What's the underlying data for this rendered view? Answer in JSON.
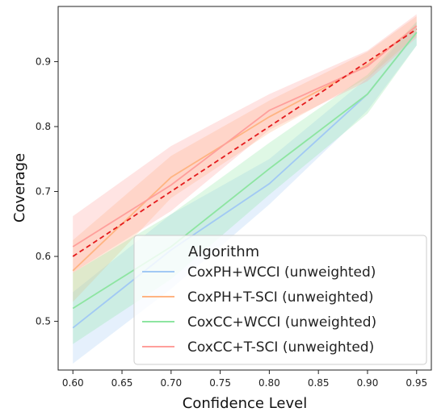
{
  "chart_data": {
    "type": "line",
    "title": "",
    "xlabel": "Confidence Level",
    "ylabel": "Coverage",
    "xlim": [
      0.585,
      0.965
    ],
    "ylim": [
      0.425,
      0.985
    ],
    "x_ticks": [
      "0.60",
      "0.65",
      "0.70",
      "0.75",
      "0.80",
      "0.85",
      "0.90",
      "0.95"
    ],
    "y_ticks": [
      "0.5",
      "0.6",
      "0.7",
      "0.8",
      "0.9"
    ],
    "grid": false,
    "legend": {
      "title": "Algorithm",
      "placement": "lower-right"
    },
    "x": [
      0.6,
      0.7,
      0.8,
      0.9,
      0.95
    ],
    "series": [
      {
        "name": "CoxPH+WCCI (unweighted)",
        "color": "#a1c9f4",
        "values": [
          0.49,
          0.61,
          0.712,
          0.85,
          0.945
        ],
        "lower": [
          0.435,
          0.55,
          0.68,
          0.825,
          0.925
        ],
        "upper": [
          0.545,
          0.665,
          0.75,
          0.875,
          0.96
        ]
      },
      {
        "name": "CoxPH+T-SCI (unweighted)",
        "color": "#ffb482",
        "values": [
          0.578,
          0.722,
          0.815,
          0.895,
          0.955
        ],
        "lower": [
          0.53,
          0.69,
          0.79,
          0.875,
          0.94
        ],
        "upper": [
          0.625,
          0.755,
          0.84,
          0.915,
          0.97
        ]
      },
      {
        "name": "CoxCC+WCCI (unweighted)",
        "color": "#8de5a1",
        "values": [
          0.52,
          0.615,
          0.735,
          0.85,
          0.945
        ],
        "lower": [
          0.465,
          0.565,
          0.695,
          0.82,
          0.925
        ],
        "upper": [
          0.575,
          0.665,
          0.775,
          0.88,
          0.962
        ]
      },
      {
        "name": "CoxCC+T-SCI (unweighted)",
        "color": "#ff9f9b",
        "values": [
          0.615,
          0.71,
          0.825,
          0.893,
          0.955
        ],
        "lower": [
          0.575,
          0.67,
          0.795,
          0.87,
          0.937
        ],
        "upper": [
          0.662,
          0.77,
          0.85,
          0.917,
          0.973
        ]
      }
    ],
    "reference_line": {
      "color": "#e41a1c",
      "style": "dashed",
      "x": [
        0.6,
        0.95
      ],
      "y": [
        0.6,
        0.95
      ]
    }
  }
}
